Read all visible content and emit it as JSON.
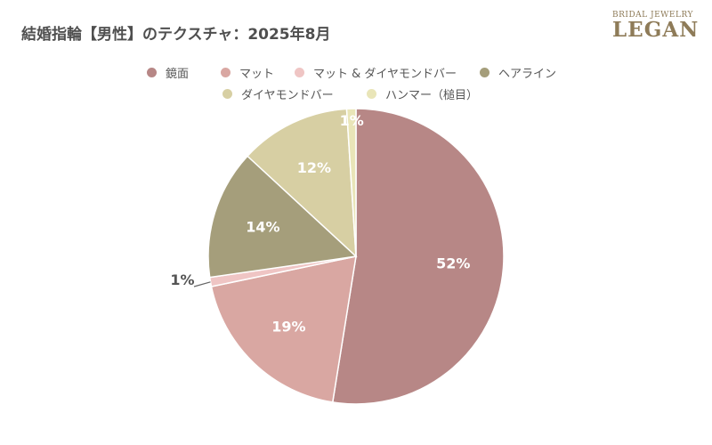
{
  "brand": {
    "top": "BRIDAL JEWELRY",
    "main": "LEGAN"
  },
  "chart_data": {
    "type": "pie",
    "title": "結婚指輪【男性】のテクスチャ：2025年8月",
    "legend_position": "top",
    "categories": [
      "鏡面",
      "マット",
      "マット & ダイヤモンドバー",
      "ヘアライン",
      "ダイヤモンドバー",
      "ハンマー（槌目）"
    ],
    "values": [
      52,
      19,
      1,
      14,
      12,
      1
    ],
    "labels": [
      "52%",
      "19%",
      "1%",
      "14%",
      "12%",
      "1%"
    ],
    "colors": [
      "#b78786",
      "#d9a7a2",
      "#efc5c4",
      "#a59e7b",
      "#d7cfa3",
      "#e9e5b8"
    ]
  }
}
